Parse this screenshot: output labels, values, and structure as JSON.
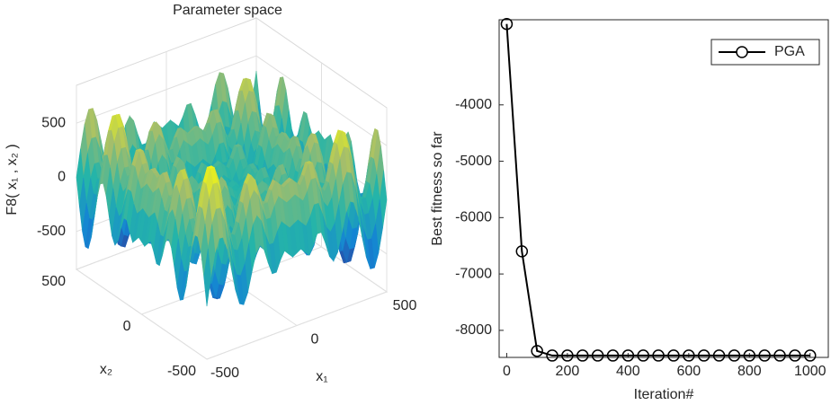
{
  "chart_data": [
    {
      "type": "surface3d",
      "title": "Parameter space",
      "xlabel": "x₁",
      "ylabel": "x₂",
      "zlabel": "F8( x₁ , x₂ )",
      "xlim": [
        -500,
        500
      ],
      "ylim": [
        -500,
        500
      ],
      "zlim": [
        -850,
        850
      ],
      "xticks": [
        -500,
        0,
        500
      ],
      "yticks": [
        -500,
        0,
        500
      ],
      "zticks": [
        -500,
        0,
        500
      ],
      "grid": true
    },
    {
      "type": "line",
      "xlabel": "Iteration#",
      "ylabel": "Best fitness so far",
      "x": [
        0,
        50,
        100,
        150,
        200,
        250,
        300,
        350,
        400,
        450,
        500,
        550,
        600,
        650,
        700,
        750,
        800,
        850,
        900,
        950,
        1000
      ],
      "series": [
        {
          "name": "PGA",
          "color": "#000000",
          "values": [
            -2565,
            -6598,
            -8366,
            -8447,
            -8447,
            -8447,
            -8447,
            -8447,
            -8447,
            -8447,
            -8447,
            -8447,
            -8447,
            -8447,
            -8447,
            -8447,
            -8447,
            -8447,
            -8447,
            -8447,
            -8447
          ]
        }
      ],
      "xlim": [
        -25,
        1060
      ],
      "ylim": [
        -8480,
        -2490
      ],
      "xticks": [
        0,
        200,
        400,
        600,
        800,
        1000
      ],
      "yticks": [
        -8000,
        -7000,
        -6000,
        -5000,
        -4000
      ],
      "legend": "top-right"
    }
  ]
}
